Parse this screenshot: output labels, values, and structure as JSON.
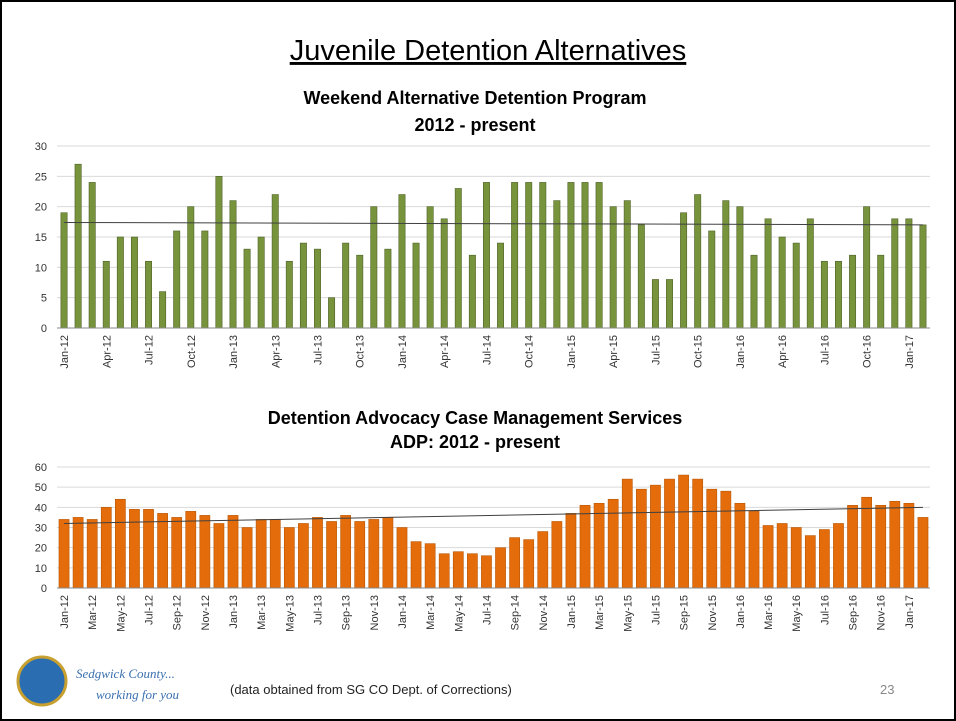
{
  "header": {
    "title": "Juvenile Detention Alternatives"
  },
  "chart_data": [
    {
      "type": "bar",
      "title": "Weekend Alternative Detention Program",
      "subtitle": "2012 - present",
      "categories": [
        "Jan-12",
        null,
        null,
        "Apr-12",
        null,
        null,
        "Jul-12",
        null,
        null,
        "Oct-12",
        null,
        null,
        "Jan-13",
        null,
        null,
        "Apr-13",
        null,
        null,
        "Jul-13",
        null,
        null,
        "Oct-13",
        null,
        null,
        "Jan-14",
        null,
        null,
        "Apr-14",
        null,
        null,
        "Jul-14",
        null,
        null,
        "Oct-14",
        null,
        null,
        "Jan-15",
        null,
        null,
        "Apr-15",
        null,
        null,
        "Jul-15",
        null,
        null,
        "Oct-15",
        null,
        null,
        "Jan-16",
        null,
        null,
        "Apr-16",
        null,
        null,
        "Jul-16",
        null,
        null,
        "Oct-16",
        null,
        null,
        "Jan-17",
        null
      ],
      "values": [
        19,
        27,
        24,
        11,
        15,
        15,
        11,
        6,
        16,
        20,
        16,
        25,
        21,
        13,
        15,
        22,
        11,
        14,
        13,
        5,
        14,
        12,
        20,
        13,
        22,
        14,
        20,
        18,
        23,
        12,
        24,
        14,
        24,
        24,
        24,
        21,
        24,
        24,
        24,
        20,
        21,
        17,
        8,
        8,
        19,
        22,
        16,
        21,
        20,
        12,
        18,
        15,
        14,
        18,
        11,
        11,
        12,
        20,
        12,
        18,
        18,
        17
      ],
      "color": "#77933c",
      "trendline": [
        17.4,
        17.0
      ],
      "ylim": [
        0,
        30
      ],
      "yticks": [
        0,
        5,
        10,
        15,
        20,
        25,
        30
      ],
      "grid": true
    },
    {
      "type": "bar",
      "title": "Detention Advocacy Case Management Services",
      "subtitle": "ADP: 2012 - present",
      "categories": [
        "Jan-12",
        null,
        "Mar-12",
        null,
        "May-12",
        null,
        "Jul-12",
        null,
        "Sep-12",
        null,
        "Nov-12",
        null,
        "Jan-13",
        null,
        "Mar-13",
        null,
        "May-13",
        null,
        "Jul-13",
        null,
        "Sep-13",
        null,
        "Nov-13",
        null,
        "Jan-14",
        null,
        "Mar-14",
        null,
        "May-14",
        null,
        "Jul-14",
        null,
        "Sep-14",
        null,
        "Nov-14",
        null,
        "Jan-15",
        null,
        "Mar-15",
        null,
        "May-15",
        null,
        "Jul-15",
        null,
        "Sep-15",
        null,
        "Nov-15",
        null,
        "Jan-16",
        null,
        "Mar-16",
        null,
        "May-16",
        null,
        "Jul-16",
        null,
        "Sep-16",
        null,
        "Nov-16",
        null,
        "Jan-17",
        null
      ],
      "values": [
        34,
        35,
        34,
        40,
        44,
        39,
        39,
        37,
        35,
        38,
        36,
        32,
        36,
        30,
        34,
        34,
        30,
        32,
        35,
        33,
        36,
        33,
        34,
        35,
        30,
        23,
        22,
        17,
        18,
        17,
        16,
        20,
        25,
        24,
        28,
        33,
        37,
        41,
        42,
        44,
        54,
        49,
        51,
        54,
        56,
        54,
        49,
        48,
        42,
        38,
        31,
        32,
        30,
        26,
        29,
        32,
        41,
        45,
        41,
        43,
        42,
        35
      ],
      "color": "#e46c0a",
      "trendline": [
        32,
        40
      ],
      "ylim": [
        0,
        60
      ],
      "yticks": [
        0,
        10,
        20,
        30,
        40,
        50,
        60
      ],
      "grid": true
    }
  ],
  "footer": {
    "logo_line1": "Sedgwick County...",
    "logo_line2": "working for you",
    "note": "(data obtained from SG CO Dept. of Corrections)",
    "page_number": "23"
  }
}
